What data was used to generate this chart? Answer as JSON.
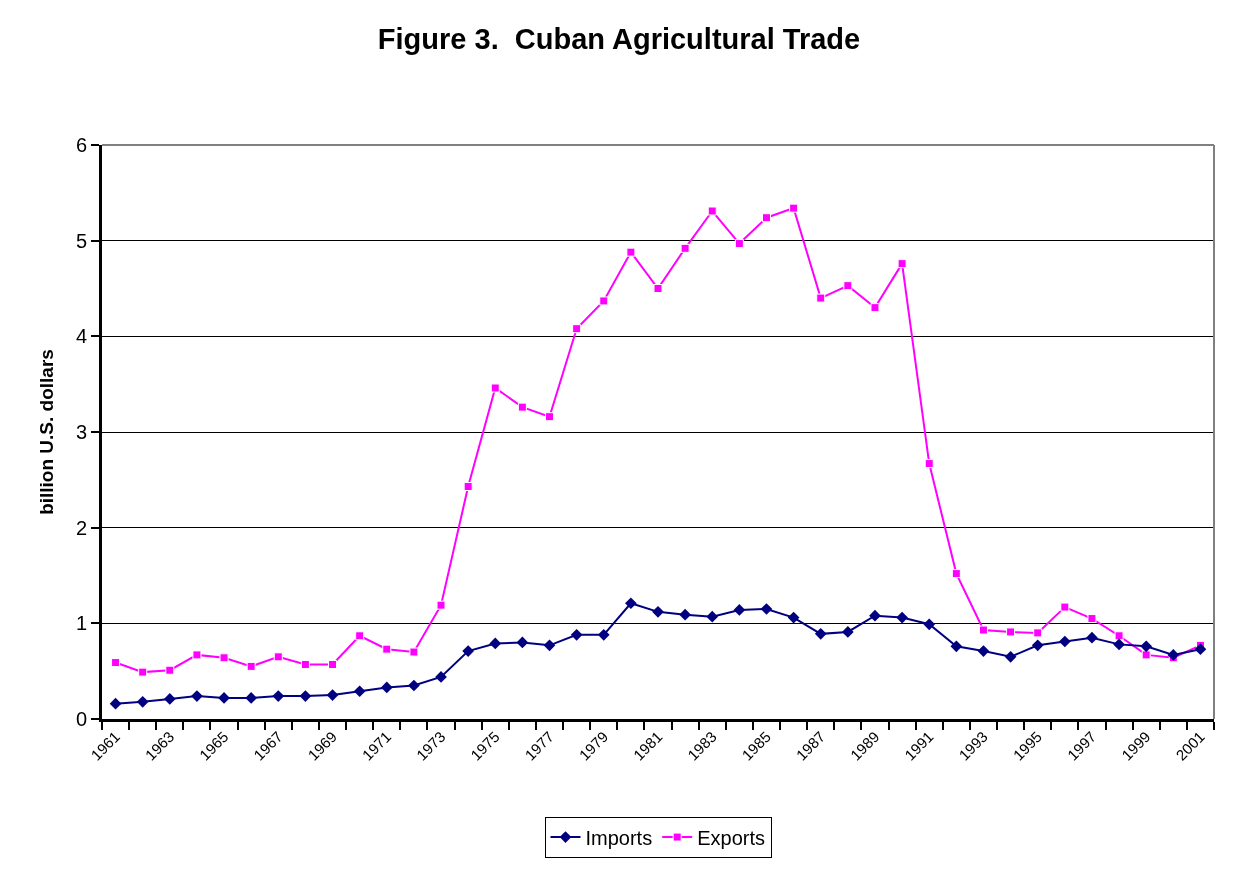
{
  "chart_data": {
    "type": "line",
    "title": "Figure 3.  Cuban Agricultural Trade",
    "ylabel": "billion U.S. dollars",
    "categories": [
      "1961",
      null,
      "1963",
      null,
      "1965",
      null,
      "1967",
      null,
      "1969",
      null,
      "1971",
      null,
      "1973",
      null,
      "1975",
      null,
      "1977",
      null,
      "1979",
      null,
      "1981",
      null,
      "1983",
      null,
      "1985",
      null,
      "1987",
      null,
      "1989",
      null,
      "1991",
      null,
      "1993",
      null,
      "1995",
      null,
      "1997",
      null,
      "1999",
      null,
      "2001"
    ],
    "series": [
      {
        "name": "Imports",
        "color": "#000080",
        "marker": "diamond",
        "values": [
          0.16,
          0.18,
          0.21,
          0.24,
          0.22,
          0.22,
          0.24,
          0.24,
          0.25,
          0.29,
          0.33,
          0.35,
          0.44,
          0.71,
          0.79,
          0.8,
          0.77,
          0.88,
          0.88,
          1.21,
          1.12,
          1.09,
          1.07,
          1.14,
          1.15,
          1.06,
          0.89,
          0.91,
          1.08,
          1.06,
          0.99,
          0.76,
          0.71,
          0.65,
          0.77,
          0.81,
          0.85,
          0.78,
          0.76,
          0.67,
          0.73
        ]
      },
      {
        "name": "Exports",
        "color": "#ff00ff",
        "marker": "square",
        "values": [
          0.59,
          0.49,
          0.51,
          0.67,
          0.64,
          0.55,
          0.65,
          0.57,
          0.57,
          0.87,
          0.73,
          0.7,
          1.19,
          2.43,
          3.46,
          3.26,
          3.16,
          4.08,
          4.37,
          4.88,
          4.5,
          4.92,
          5.31,
          4.97,
          5.24,
          5.34,
          4.4,
          4.53,
          4.3,
          4.76,
          2.67,
          1.52,
          0.93,
          0.91,
          0.9,
          1.17,
          1.05,
          0.87,
          0.67,
          0.64,
          0.77
        ]
      }
    ],
    "ylim": [
      0,
      6
    ],
    "yticks": [
      0,
      1,
      2,
      3,
      4,
      5,
      6
    ],
    "grid": "y",
    "legend": "bottom",
    "line_style": "solid"
  }
}
